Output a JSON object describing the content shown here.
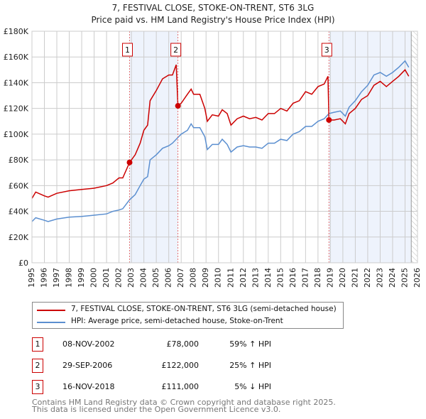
{
  "chart_data": {
    "type": "line",
    "title": "7, FESTIVAL CLOSE, STOKE-ON-TRENT, ST6 3LG",
    "subtitle": "Price paid vs. HM Land Registry's House Price Index (HPI)",
    "xlim": [
      1995,
      2026
    ],
    "ylim": [
      0,
      180000
    ],
    "x_ticks": [
      "1995",
      "1996",
      "1997",
      "1998",
      "1999",
      "2000",
      "2001",
      "2002",
      "2003",
      "2004",
      "2005",
      "2006",
      "2007",
      "2008",
      "2009",
      "2010",
      "2011",
      "2012",
      "2013",
      "2014",
      "2015",
      "2016",
      "2017",
      "2018",
      "2019",
      "2020",
      "2021",
      "2022",
      "2023",
      "2024",
      "2025",
      "2026"
    ],
    "y_ticks": [
      {
        "v": 0,
        "label": "£0"
      },
      {
        "v": 20000,
        "label": "£20K"
      },
      {
        "v": 40000,
        "label": "£40K"
      },
      {
        "v": 60000,
        "label": "£60K"
      },
      {
        "v": 80000,
        "label": "£80K"
      },
      {
        "v": 100000,
        "label": "£100K"
      },
      {
        "v": 120000,
        "label": "£120K"
      },
      {
        "v": 140000,
        "label": "£140K"
      },
      {
        "v": 160000,
        "label": "£160K"
      },
      {
        "v": 180000,
        "label": "£180K"
      }
    ],
    "grid": true,
    "shaded_ranges": [
      [
        2002.85,
        2006.75
      ],
      [
        2018.88,
        2025.5
      ]
    ],
    "forecast_hatch_from": 2025.5,
    "series": [
      {
        "name": "7, FESTIVAL CLOSE, STOKE-ON-TRENT, ST6 3LG (semi-detached house)",
        "color": "#cc0000",
        "x": [
          1995,
          1995.3,
          1996,
          1996.3,
          1997,
          1998,
          1999,
          2000,
          2001,
          2001.5,
          2002,
          2002.3,
          2002.85,
          2003.3,
          2003.7,
          2004,
          2004.3,
          2004.5,
          2005,
          2005.5,
          2006,
          2006.3,
          2006.6,
          2006.74,
          2007,
          2007.5,
          2007.8,
          2008,
          2008.5,
          2008.9,
          2009.1,
          2009.5,
          2010,
          2010.3,
          2010.7,
          2011,
          2011.5,
          2012,
          2012.5,
          2013,
          2013.5,
          2014,
          2014.5,
          2015,
          2015.5,
          2016,
          2016.5,
          2017,
          2017.5,
          2018,
          2018.5,
          2018.8,
          2018.88,
          2019.3,
          2019.8,
          2020.2,
          2020.5,
          2021,
          2021.5,
          2022,
          2022.5,
          2023,
          2023.5,
          2024,
          2024.5,
          2025,
          2025.3
        ],
        "y": [
          50000,
          55000,
          52000,
          51000,
          54000,
          56000,
          57000,
          58000,
          60000,
          62000,
          66000,
          66000,
          78000,
          84000,
          93000,
          103000,
          107000,
          126000,
          134000,
          143000,
          146000,
          146000,
          154000,
          122000,
          124000,
          131000,
          135000,
          131000,
          131000,
          120000,
          110000,
          115000,
          114000,
          119000,
          116000,
          107000,
          112000,
          114000,
          112000,
          113000,
          111000,
          116000,
          116000,
          120000,
          118000,
          124000,
          126000,
          133000,
          131000,
          137000,
          139000,
          145000,
          111000,
          111000,
          112000,
          108000,
          116000,
          120000,
          127000,
          130000,
          138000,
          141000,
          137000,
          141000,
          145000,
          150000,
          145000
        ]
      },
      {
        "name": "HPI: Average price, semi-detached house, Stoke-on-Trent",
        "color": "#5b8fd0",
        "x": [
          1995,
          1995.3,
          1996,
          1996.3,
          1997,
          1998,
          1999,
          2000,
          2001,
          2001.5,
          2002,
          2002.3,
          2002.85,
          2003.3,
          2003.7,
          2004,
          2004.3,
          2004.5,
          2005,
          2005.5,
          2006,
          2006.3,
          2006.75,
          2007,
          2007.5,
          2007.8,
          2008,
          2008.5,
          2008.9,
          2009.1,
          2009.5,
          2010,
          2010.3,
          2010.7,
          2011,
          2011.5,
          2012,
          2012.5,
          2013,
          2013.5,
          2014,
          2014.5,
          2015,
          2015.5,
          2016,
          2016.5,
          2017,
          2017.5,
          2018,
          2018.5,
          2018.88,
          2019.3,
          2019.8,
          2020.2,
          2020.5,
          2021,
          2021.5,
          2022,
          2022.5,
          2023,
          2023.5,
          2024,
          2024.5,
          2025,
          2025.3
        ],
        "y": [
          32000,
          35000,
          33000,
          32000,
          34000,
          35500,
          36000,
          37000,
          38000,
          40000,
          41000,
          42000,
          49000,
          53000,
          60000,
          65000,
          67000,
          80000,
          84000,
          89000,
          91000,
          93000,
          97500,
          100000,
          103000,
          108000,
          105000,
          105000,
          98000,
          88000,
          92000,
          92000,
          96000,
          92000,
          86000,
          90000,
          91000,
          90000,
          90000,
          89000,
          93000,
          93000,
          96000,
          95000,
          100000,
          102000,
          106000,
          106000,
          110000,
          112000,
          116000,
          117000,
          118000,
          114000,
          121000,
          126000,
          133000,
          138000,
          146000,
          148000,
          145000,
          148000,
          152000,
          157000,
          152000
        ]
      }
    ],
    "sales": [
      {
        "n": "1",
        "x": 2002.85,
        "price": 78000,
        "date": "08-NOV-2002",
        "price_label": "£78,000",
        "hpi": "59% ↑ HPI"
      },
      {
        "n": "2",
        "x": 2006.74,
        "price": 122000,
        "date": "29-SEP-2006",
        "price_label": "£122,000",
        "hpi": "25% ↑ HPI"
      },
      {
        "n": "3",
        "x": 2018.88,
        "price": 111000,
        "date": "16-NOV-2018",
        "price_label": "£111,000",
        "hpi": "5% ↓ HPI"
      }
    ]
  },
  "footer": {
    "line1": "Contains HM Land Registry data © Crown copyright and database right 2025.",
    "line2": "This data is licensed under the Open Government Licence v3.0."
  }
}
